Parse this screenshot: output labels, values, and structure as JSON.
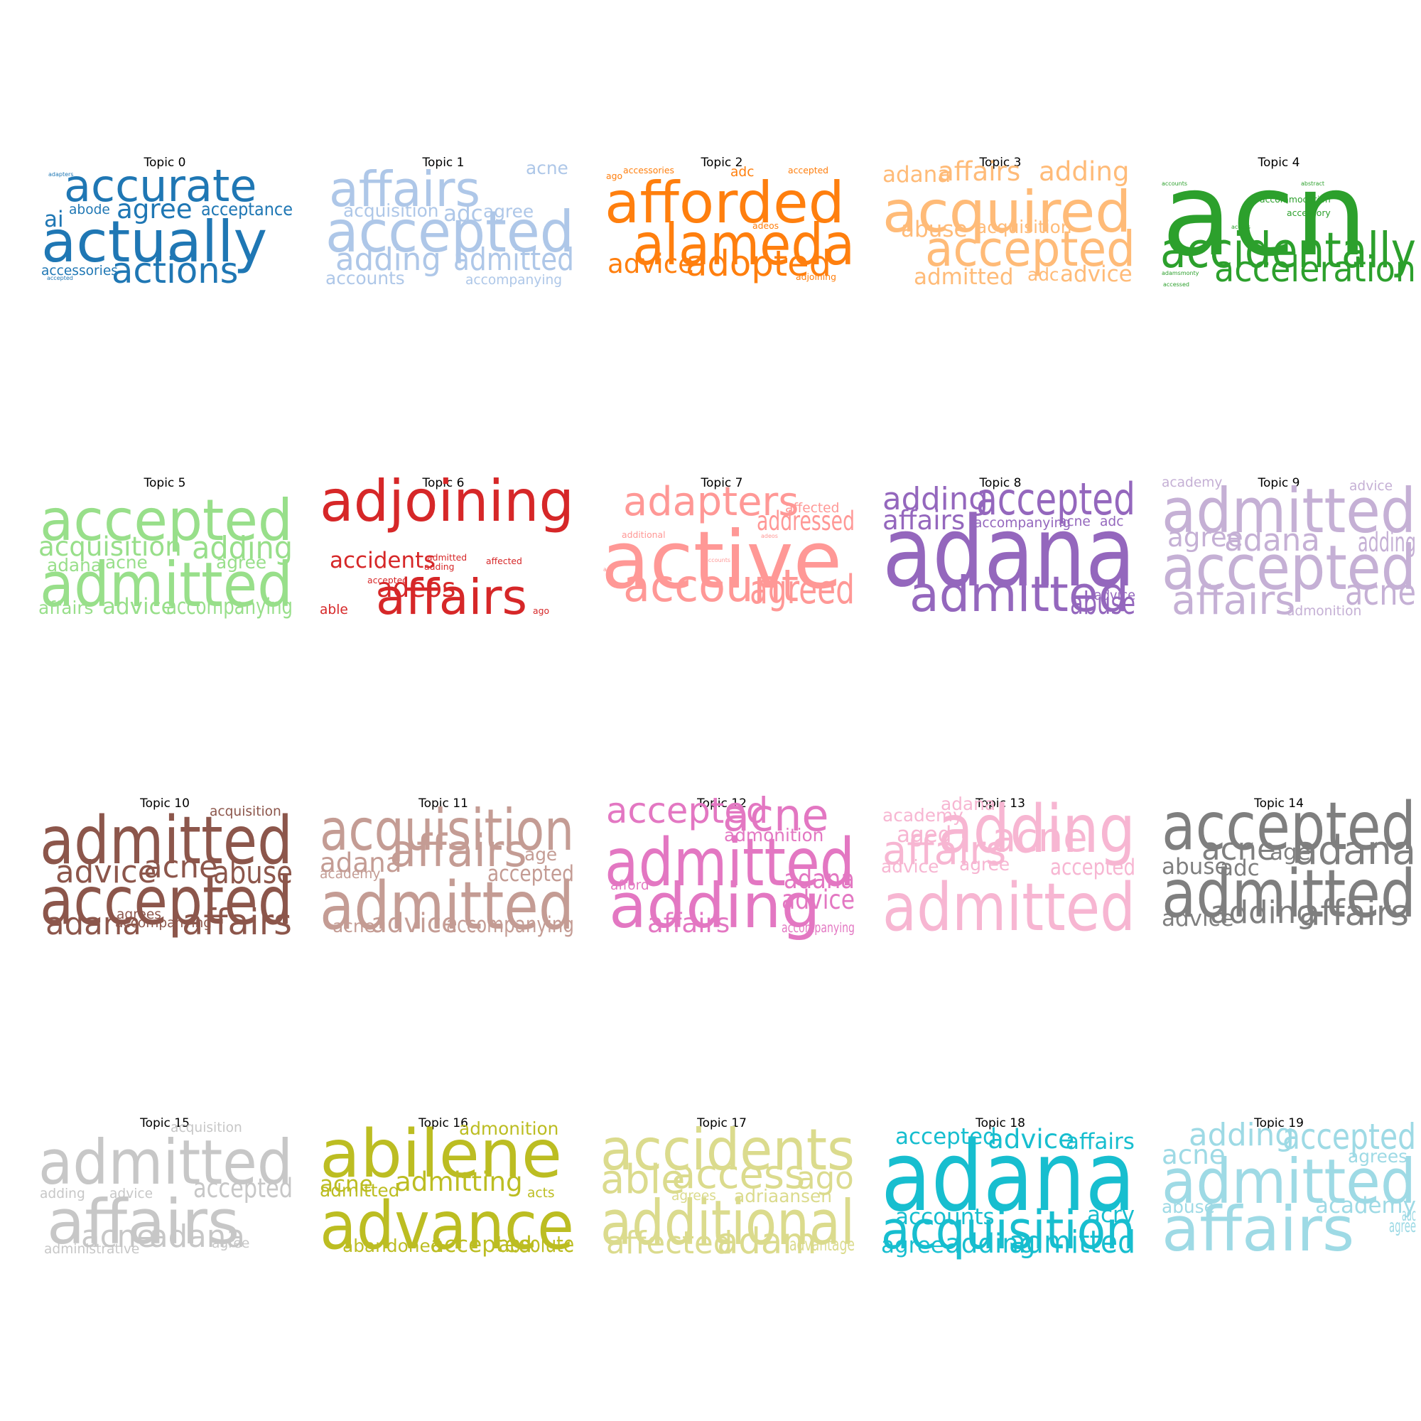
{
  "chart_data": [
    {
      "type": "wordcloud",
      "title": "Topic 0",
      "color": "#1f77b4",
      "words": [
        {
          "text": "adapters",
          "size": 1
        },
        {
          "text": "accurate",
          "size": 10
        },
        {
          "text": "abode",
          "size": 3
        },
        {
          "text": "agree",
          "size": 6
        },
        {
          "text": "acceptance",
          "size": 4
        },
        {
          "text": "ai",
          "size": 5
        },
        {
          "text": "actually",
          "size": 13
        },
        {
          "text": "accessories",
          "size": 3
        },
        {
          "text": "actions",
          "size": 8
        },
        {
          "text": "accepted",
          "size": 1
        }
      ]
    },
    {
      "type": "wordcloud",
      "title": "Topic 1",
      "color": "#aec7e8",
      "words": [
        {
          "text": "acne",
          "size": 4
        },
        {
          "text": "affairs",
          "size": 11
        },
        {
          "text": "acquisition",
          "size": 4
        },
        {
          "text": "adc",
          "size": 5
        },
        {
          "text": "agree",
          "size": 4
        },
        {
          "text": "accepted",
          "size": 13
        },
        {
          "text": "adding",
          "size": 7
        },
        {
          "text": "admitted",
          "size": 7
        },
        {
          "text": "accounts",
          "size": 4
        },
        {
          "text": "accompanying",
          "size": 3
        }
      ]
    },
    {
      "type": "wordcloud",
      "title": "Topic 2",
      "color": "#ff7f0e",
      "words": [
        {
          "text": "accessories",
          "size": 2
        },
        {
          "text": "adc",
          "size": 3
        },
        {
          "text": "accepted",
          "size": 2
        },
        {
          "text": "ago",
          "size": 2
        },
        {
          "text": "afforded",
          "size": 13
        },
        {
          "text": "adeos",
          "size": 2
        },
        {
          "text": "alameda",
          "size": 13
        },
        {
          "text": "advice",
          "size": 6
        },
        {
          "text": "adopted",
          "size": 8
        },
        {
          "text": "adjoining",
          "size": 2
        }
      ]
    },
    {
      "type": "wordcloud",
      "title": "Topic 3",
      "color": "#ffbb78",
      "words": [
        {
          "text": "adana",
          "size": 5
        },
        {
          "text": "affairs",
          "size": 6
        },
        {
          "text": "adding",
          "size": 6
        },
        {
          "text": "acquired",
          "size": 13
        },
        {
          "text": "abuse",
          "size": 5
        },
        {
          "text": "acquisition",
          "size": 4
        },
        {
          "text": "accepted",
          "size": 11
        },
        {
          "text": "admitted",
          "size": 5
        },
        {
          "text": "adc",
          "size": 4
        },
        {
          "text": "advice",
          "size": 5
        }
      ]
    },
    {
      "type": "wordcloud",
      "title": "Topic 4",
      "color": "#2ca02c",
      "words": [
        {
          "text": "accounts",
          "size": 1
        },
        {
          "text": "acn",
          "size": 26
        },
        {
          "text": "abstract",
          "size": 1
        },
        {
          "text": "accommodation",
          "size": 2
        },
        {
          "text": "accessory",
          "size": 2
        },
        {
          "text": "access",
          "size": 1
        },
        {
          "text": "accidentally",
          "size": 11
        },
        {
          "text": "adamsmonty",
          "size": 1
        },
        {
          "text": "acceleration",
          "size": 8
        },
        {
          "text": "accessed",
          "size": 1
        }
      ]
    },
    {
      "type": "wordcloud",
      "title": "Topic 5",
      "color": "#98df8a",
      "words": [
        {
          "text": "accepted",
          "size": 13
        },
        {
          "text": "acquisition",
          "size": 6
        },
        {
          "text": "adding",
          "size": 7
        },
        {
          "text": "adana",
          "size": 4
        },
        {
          "text": "acne",
          "size": 4
        },
        {
          "text": "agree",
          "size": 4
        },
        {
          "text": "admitted",
          "size": 14
        },
        {
          "text": "affairs",
          "size": 4
        },
        {
          "text": "advice",
          "size": 5
        },
        {
          "text": "accompanying",
          "size": 5
        }
      ]
    },
    {
      "type": "wordcloud",
      "title": "Topic 6",
      "color": "#d62728",
      "words": [
        {
          "text": "adjoining",
          "size": 13
        },
        {
          "text": "accidents",
          "size": 5
        },
        {
          "text": "admitted",
          "size": 2
        },
        {
          "text": "affected",
          "size": 2
        },
        {
          "text": "adding",
          "size": 2
        },
        {
          "text": "adeos",
          "size": 6
        },
        {
          "text": "accepted",
          "size": 2
        },
        {
          "text": "affairs",
          "size": 11
        },
        {
          "text": "able",
          "size": 3
        },
        {
          "text": "ago",
          "size": 2
        }
      ]
    },
    {
      "type": "wordcloud",
      "title": "Topic 7",
      "color": "#ff9896",
      "words": [
        {
          "text": "adapters",
          "size": 9
        },
        {
          "text": "affected",
          "size": 3
        },
        {
          "text": "addressed",
          "size": 6
        },
        {
          "text": "additional",
          "size": 2
        },
        {
          "text": "active",
          "size": 18
        },
        {
          "text": "accounts",
          "size": 1
        },
        {
          "text": "ago",
          "size": 1
        },
        {
          "text": "account",
          "size": 10
        },
        {
          "text": "agreed",
          "size": 9
        },
        {
          "text": "adeos",
          "size": 1
        }
      ]
    },
    {
      "type": "wordcloud",
      "title": "Topic 8",
      "color": "#9467bd",
      "words": [
        {
          "text": "adding",
          "size": 7
        },
        {
          "text": "accepted",
          "size": 10
        },
        {
          "text": "affairs",
          "size": 6
        },
        {
          "text": "accompanying",
          "size": 3
        },
        {
          "text": "acne",
          "size": 3
        },
        {
          "text": "adc",
          "size": 3
        },
        {
          "text": "adana",
          "size": 22
        },
        {
          "text": "admitted",
          "size": 11
        },
        {
          "text": "advice",
          "size": 3
        },
        {
          "text": "abuse",
          "size": 7
        }
      ]
    },
    {
      "type": "wordcloud",
      "title": "Topic 9",
      "color": "#c5b0d5",
      "words": [
        {
          "text": "academy",
          "size": 3
        },
        {
          "text": "advice",
          "size": 3
        },
        {
          "text": "admitted",
          "size": 14
        },
        {
          "text": "agree",
          "size": 6
        },
        {
          "text": "adana",
          "size": 7
        },
        {
          "text": "adding",
          "size": 6
        },
        {
          "text": "accepted",
          "size": 14
        },
        {
          "text": "affairs",
          "size": 9
        },
        {
          "text": "acne",
          "size": 8
        },
        {
          "text": "admonition",
          "size": 3
        }
      ]
    },
    {
      "type": "wordcloud",
      "title": "Topic 10",
      "color": "#8c564b",
      "words": [
        {
          "text": "acquisition",
          "size": 3
        },
        {
          "text": "admitted",
          "size": 15
        },
        {
          "text": "advice",
          "size": 7
        },
        {
          "text": "acne",
          "size": 7
        },
        {
          "text": "abuse",
          "size": 7
        },
        {
          "text": "accepted",
          "size": 15
        },
        {
          "text": "adana",
          "size": 7
        },
        {
          "text": "agrees",
          "size": 3
        },
        {
          "text": "accompanying",
          "size": 3
        },
        {
          "text": "affairs",
          "size": 8
        }
      ]
    },
    {
      "type": "wordcloud",
      "title": "Topic 11",
      "color": "#c49c94",
      "words": [
        {
          "text": "acquisition",
          "size": 13
        },
        {
          "text": "adana",
          "size": 6
        },
        {
          "text": "affairs",
          "size": 10
        },
        {
          "text": "age",
          "size": 4
        },
        {
          "text": "academy",
          "size": 3
        },
        {
          "text": "accepted",
          "size": 5
        },
        {
          "text": "admitted",
          "size": 15
        },
        {
          "text": "acne",
          "size": 4
        },
        {
          "text": "advice",
          "size": 6
        },
        {
          "text": "accompanying",
          "size": 5
        }
      ]
    },
    {
      "type": "wordcloud",
      "title": "Topic 12",
      "color": "#e377c2",
      "words": [
        {
          "text": "accepted",
          "size": 8
        },
        {
          "text": "acne",
          "size": 10
        },
        {
          "text": "admonition",
          "size": 4
        },
        {
          "text": "admitted",
          "size": 15
        },
        {
          "text": "afford",
          "size": 3
        },
        {
          "text": "adana",
          "size": 6
        },
        {
          "text": "adding",
          "size": 14
        },
        {
          "text": "advice",
          "size": 6
        },
        {
          "text": "affairs",
          "size": 6
        },
        {
          "text": "accompanying",
          "size": 3
        }
      ]
    },
    {
      "type": "wordcloud",
      "title": "Topic 13",
      "color": "#f7b6d2",
      "words": [
        {
          "text": "academy",
          "size": 4
        },
        {
          "text": "adana",
          "size": 4
        },
        {
          "text": "aged",
          "size": 5
        },
        {
          "text": "adding",
          "size": 15
        },
        {
          "text": "affairs",
          "size": 9
        },
        {
          "text": "acne",
          "size": 9
        },
        {
          "text": "advice",
          "size": 4
        },
        {
          "text": "agree",
          "size": 4
        },
        {
          "text": "accepted",
          "size": 5
        },
        {
          "text": "admitted",
          "size": 15
        }
      ]
    },
    {
      "type": "wordcloud",
      "title": "Topic 14",
      "color": "#7f7f7f",
      "words": [
        {
          "text": "accepted",
          "size": 15
        },
        {
          "text": "acne",
          "size": 7
        },
        {
          "text": "age",
          "size": 5
        },
        {
          "text": "adana",
          "size": 9
        },
        {
          "text": "abuse",
          "size": 5
        },
        {
          "text": "adc",
          "size": 5
        },
        {
          "text": "admitted",
          "size": 15
        },
        {
          "text": "advice",
          "size": 5
        },
        {
          "text": "adding",
          "size": 7
        },
        {
          "text": "affairs",
          "size": 8
        }
      ]
    },
    {
      "type": "wordcloud",
      "title": "Topic 15",
      "color": "#c7c7c7",
      "words": [
        {
          "text": "acquisition",
          "size": 3
        },
        {
          "text": "admitted",
          "size": 14
        },
        {
          "text": "adding",
          "size": 3
        },
        {
          "text": "advice",
          "size": 3
        },
        {
          "text": "accepted",
          "size": 6
        },
        {
          "text": "affairs",
          "size": 14
        },
        {
          "text": "acne",
          "size": 7
        },
        {
          "text": "adana",
          "size": 7
        },
        {
          "text": "agree",
          "size": 3
        },
        {
          "text": "administrative",
          "size": 3
        }
      ]
    },
    {
      "type": "wordcloud",
      "title": "Topic 16",
      "color": "#bcbd22",
      "words": [
        {
          "text": "abilene",
          "size": 15
        },
        {
          "text": "admonition",
          "size": 4
        },
        {
          "text": "acne",
          "size": 5
        },
        {
          "text": "admitting",
          "size": 6
        },
        {
          "text": "admitted",
          "size": 4
        },
        {
          "text": "acts",
          "size": 3
        },
        {
          "text": "advance",
          "size": 15
        },
        {
          "text": "abandoned",
          "size": 4
        },
        {
          "text": "accepted",
          "size": 5
        },
        {
          "text": "absolute",
          "size": 5
        }
      ]
    },
    {
      "type": "wordcloud",
      "title": "Topic 17",
      "color": "#dbdb8d",
      "words": [
        {
          "text": "accidents",
          "size": 13
        },
        {
          "text": "able",
          "size": 9
        },
        {
          "text": "access",
          "size": 9
        },
        {
          "text": "ago",
          "size": 7
        },
        {
          "text": "agrees",
          "size": 3
        },
        {
          "text": "adriaansen",
          "size": 4
        },
        {
          "text": "additional",
          "size": 14
        },
        {
          "text": "affected",
          "size": 7
        },
        {
          "text": "adam",
          "size": 8
        },
        {
          "text": "advantage",
          "size": 4
        }
      ]
    },
    {
      "type": "wordcloud",
      "title": "Topic 18",
      "color": "#17becf",
      "words": [
        {
          "text": "accepted",
          "size": 5
        },
        {
          "text": "advice",
          "size": 6
        },
        {
          "text": "affairs",
          "size": 5
        },
        {
          "text": "adana",
          "size": 22
        },
        {
          "text": "accounts",
          "size": 5
        },
        {
          "text": "acrv",
          "size": 5
        },
        {
          "text": "acquisition",
          "size": 12
        },
        {
          "text": "agree",
          "size": 5
        },
        {
          "text": "adding",
          "size": 6
        },
        {
          "text": "admitted",
          "size": 7
        }
      ]
    },
    {
      "type": "wordcloud",
      "title": "Topic 19",
      "color": "#9edae5",
      "words": [
        {
          "text": "acne",
          "size": 6
        },
        {
          "text": "adding",
          "size": 7
        },
        {
          "text": "accepted",
          "size": 8
        },
        {
          "text": "agrees",
          "size": 4
        },
        {
          "text": "admitted",
          "size": 14
        },
        {
          "text": "abuse",
          "size": 4
        },
        {
          "text": "academy",
          "size": 5
        },
        {
          "text": "affairs",
          "size": 14
        },
        {
          "text": "adc",
          "size": 4
        },
        {
          "text": "agree",
          "size": 4
        }
      ]
    }
  ]
}
